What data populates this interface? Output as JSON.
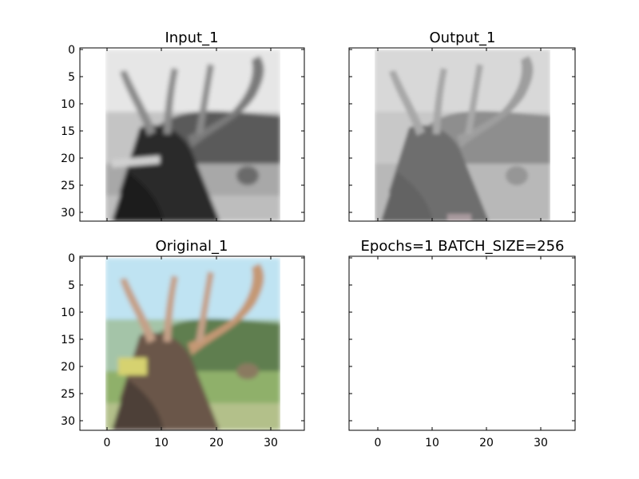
{
  "chart_data": [
    {
      "type": "image",
      "title": "Input_1",
      "xlim": [
        -5,
        36
      ],
      "ylim": [
        32,
        -1
      ],
      "xticks": [],
      "yticks": [
        0,
        5,
        10,
        15,
        20,
        25,
        30
      ],
      "image_extent": [
        -0.5,
        31.5,
        31.5,
        -0.5
      ],
      "colormap": "grayscale",
      "content": "deer-grayscale-blurry"
    },
    {
      "type": "image",
      "title": "Output_1",
      "xlim": [
        -5,
        36
      ],
      "ylim": [
        32,
        -1
      ],
      "xticks": [],
      "yticks": [
        0,
        5,
        10,
        15,
        20,
        25,
        30
      ],
      "image_extent": [
        -0.5,
        31.5,
        31.5,
        -0.5
      ],
      "colormap": "grayscale",
      "content": "deer-grayscale-low-contrast"
    },
    {
      "type": "image",
      "title": "Original_1",
      "xlim": [
        -5,
        36
      ],
      "ylim": [
        32,
        -1
      ],
      "xticks": [
        0,
        10,
        20,
        30
      ],
      "yticks": [
        0,
        5,
        10,
        15,
        20,
        25,
        30
      ],
      "image_extent": [
        -0.5,
        31.5,
        31.5,
        -0.5
      ],
      "colormap": "rgb",
      "content": "deer-color"
    },
    {
      "type": "image",
      "title": "Epochs=1 BATCH_SIZE=256",
      "xlim": [
        -5,
        36
      ],
      "ylim": [
        32,
        -1
      ],
      "xticks": [
        0,
        10,
        20,
        30
      ],
      "yticks": [],
      "content": "empty"
    }
  ]
}
